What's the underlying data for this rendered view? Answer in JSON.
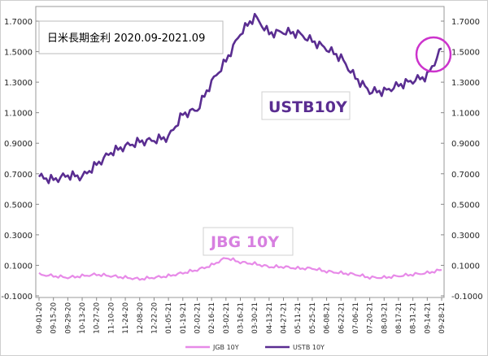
{
  "chart_data": {
    "type": "line",
    "title": "日米長期金利 2020.09-2021.09",
    "y_axis_ticks": [
      "1.7000",
      "1.5000",
      "1.3000",
      "1.1000",
      "0.9000",
      "0.7000",
      "0.5000",
      "0.3000",
      "0.1000",
      "-0.1000"
    ],
    "ylim": [
      -0.1,
      1.7
    ],
    "x_tick_labels": [
      "09-01-20",
      "09-15-20",
      "09-29-20",
      "10-13-20",
      "10-27-20",
      "11-10-20",
      "11-24-20",
      "12-08-20",
      "12-22-20",
      "01-05-21",
      "01-19-21",
      "02-02-21",
      "02-16-21",
      "03-02-21",
      "03-16-21",
      "03-30-21",
      "04-13-21",
      "04-27-21",
      "05-11-21",
      "05-25-21",
      "06-08-21",
      "06-22-21",
      "07-06-21",
      "07-20-21",
      "08-03-21",
      "08-17-21",
      "08-31-21",
      "09-14-21",
      "09-28-21"
    ],
    "series": [
      {
        "name": "USTB 10Y",
        "color": "#5a2d91",
        "values": [
          0.68,
          0.66,
          0.69,
          0.68,
          0.76,
          0.84,
          0.88,
          0.91,
          0.92,
          0.94,
          1.09,
          1.12,
          1.3,
          1.44,
          1.62,
          1.73,
          1.62,
          1.63,
          1.62,
          1.57,
          1.52,
          1.46,
          1.33,
          1.24,
          1.24,
          1.28,
          1.31,
          1.34,
          1.52
        ]
      },
      {
        "name": "JGB 10Y",
        "color": "#e78ae8",
        "values": [
          0.04,
          0.03,
          0.02,
          0.03,
          0.04,
          0.03,
          0.02,
          0.01,
          0.02,
          0.03,
          0.05,
          0.07,
          0.1,
          0.15,
          0.12,
          0.11,
          0.09,
          0.09,
          0.08,
          0.08,
          0.06,
          0.05,
          0.04,
          0.02,
          0.02,
          0.03,
          0.04,
          0.05,
          0.07
        ]
      }
    ],
    "annotations": {
      "ustb_label": "USTB10Y",
      "jgb_label": "JBG 10Y"
    },
    "legend": {
      "placement": "bottom",
      "items": [
        {
          "label": "JGB 10Y",
          "color": "#e78ae8"
        },
        {
          "label": "USTB 10Y",
          "color": "#5a2d91"
        }
      ]
    },
    "highlight_circle_color": "#cc33cc",
    "grid": false
  }
}
